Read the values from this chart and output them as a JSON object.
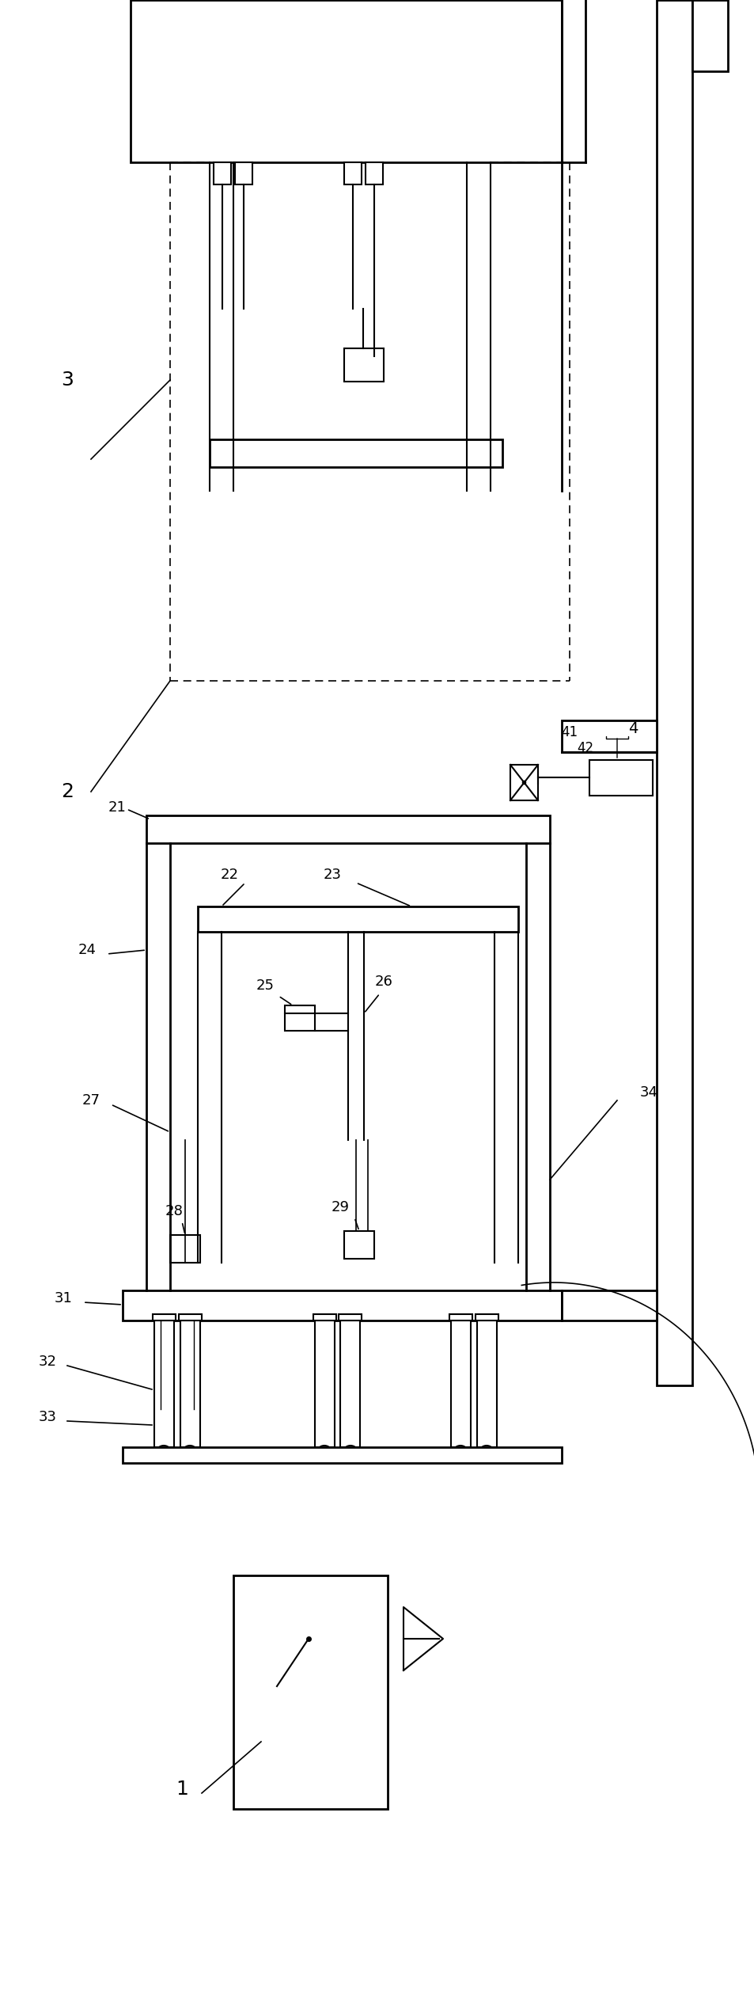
{
  "bg_color": "#ffffff",
  "line_color": "#000000",
  "figsize": [
    9.54,
    25.2
  ],
  "dpi": 100
}
